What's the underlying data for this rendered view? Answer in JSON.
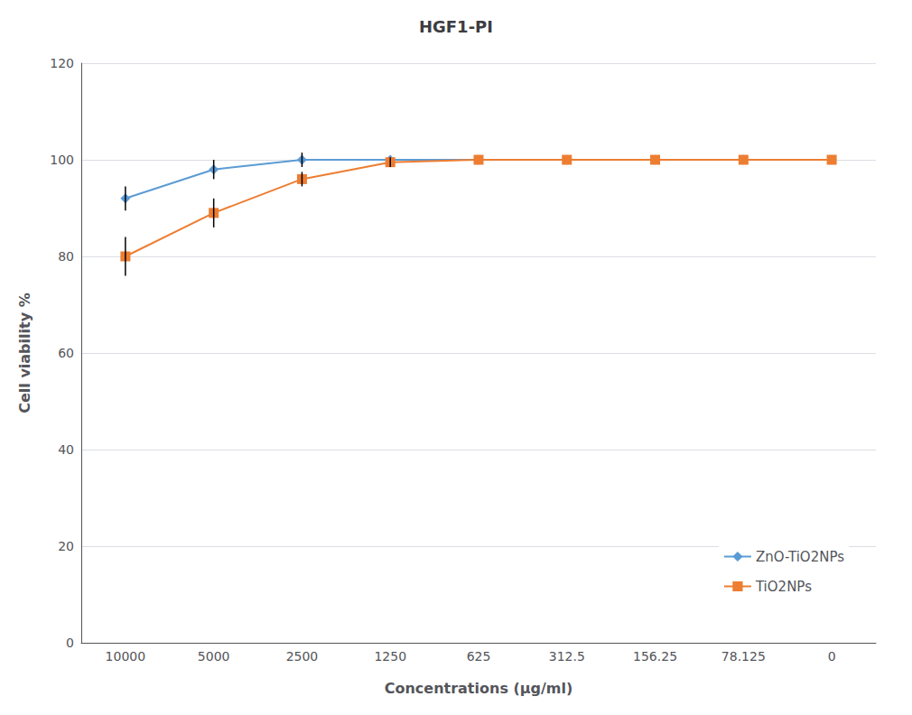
{
  "chart_data": {
    "type": "line",
    "title": "HGF1-PI",
    "xlabel": "Concentrations (μg/ml)",
    "ylabel": "Cell viability %",
    "categories": [
      "10000",
      "5000",
      "2500",
      "1250",
      "625",
      "312.5",
      "156.25",
      "78.125",
      "0"
    ],
    "series": [
      {
        "name": "ZnO-TiO2NPs",
        "color": "#5B9BD5",
        "marker": "diamond",
        "values": [
          92,
          98,
          100,
          100,
          100,
          100,
          100,
          100,
          100
        ],
        "errors": [
          2.5,
          2,
          1.5,
          0,
          0,
          0,
          0,
          0,
          0
        ]
      },
      {
        "name": "TiO2NPs",
        "color": "#ED7D31",
        "marker": "square",
        "values": [
          80,
          89,
          96,
          99.5,
          100,
          100,
          100,
          100,
          100
        ],
        "errors": [
          4,
          3,
          1.5,
          1,
          0,
          0,
          0,
          0,
          0
        ]
      }
    ],
    "ylim": [
      0,
      120
    ],
    "yticks": [
      0,
      20,
      40,
      60,
      80,
      100,
      120
    ],
    "grid": true,
    "legend": "lower right"
  }
}
